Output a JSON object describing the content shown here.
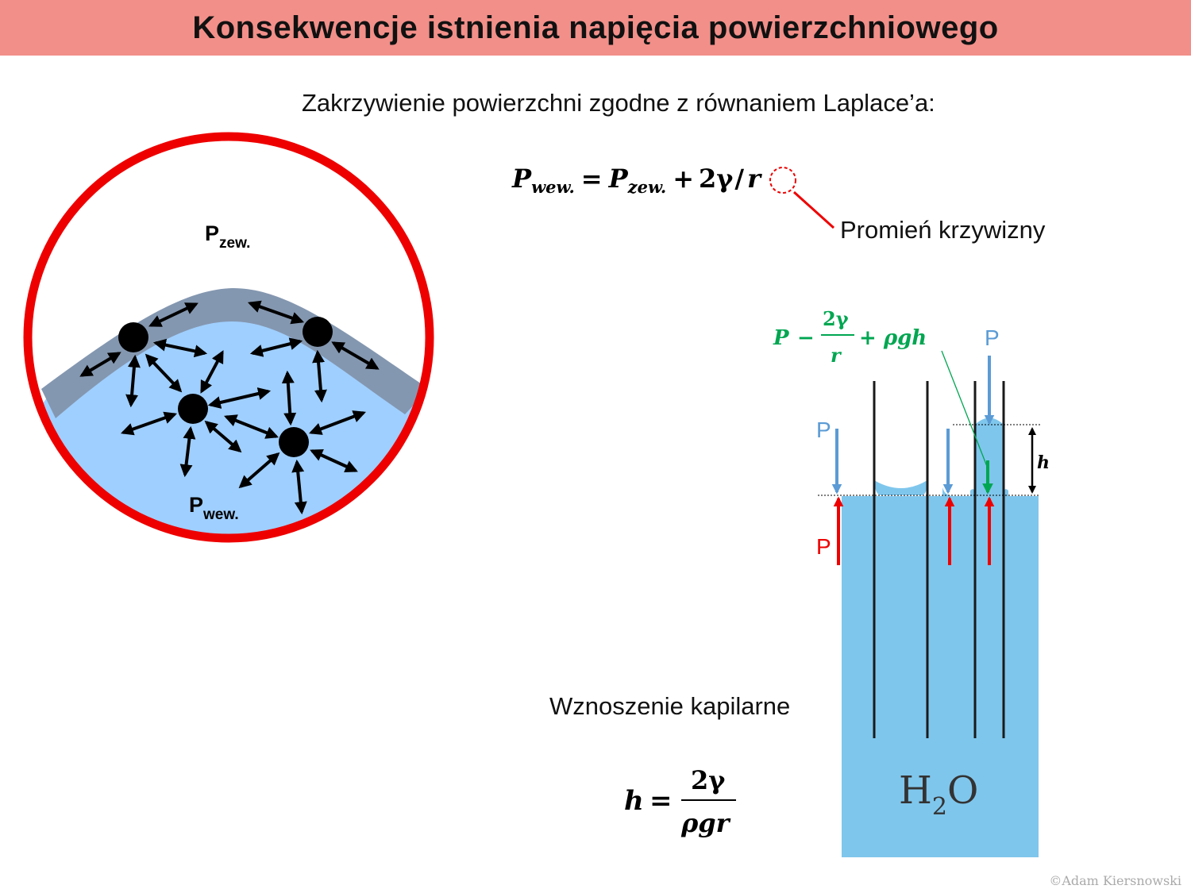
{
  "title": "Konsekwencje istnienia napięcia powierzchniowego",
  "subtitle": "Zakrzywienie powierzchni zgodne z równaniem Laplace’a:",
  "laplace": {
    "p_in": "P",
    "p_in_sub": "wew.",
    "equals": "=",
    "p_out": "P",
    "p_out_sub": "zew.",
    "plus": "+",
    "two_gamma": "2γ",
    "slash": "/",
    "r": "r"
  },
  "radius_label": "Promień krzywizny",
  "bubble": {
    "p_out": "P",
    "p_out_sub": "zew.",
    "p_in": "P",
    "p_in_sub": "wew."
  },
  "capillary": {
    "pressure_formula": {
      "p": "P",
      "minus": "−",
      "numerator": "2γ",
      "denominator": "r",
      "plus_term": "+ ρgh"
    },
    "p_top_right": "P",
    "p_left": "P",
    "p_bottom": "P",
    "h_label": "h",
    "water_label": "H",
    "water_sub": "2",
    "water_o": "O"
  },
  "capillary_title": "Wznoszenie kapilarne",
  "height_formula": {
    "h": "h",
    "equals": "=",
    "numerator": "2γ",
    "denominator": "ρgr"
  },
  "copyright": "©Adam Kiersnowski",
  "colors": {
    "title_bg": "#f28f89",
    "red": "#ee0000",
    "green": "#00a651",
    "blue_arrow": "#5b9bd5",
    "water": "#7fc6ec",
    "surface_layer": "#8497b0",
    "liquid": "#9fcfff"
  }
}
